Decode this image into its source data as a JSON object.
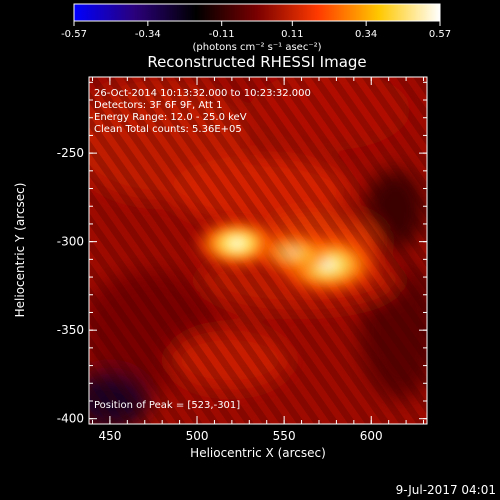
{
  "colorbar": {
    "ticks": [
      "-0.57",
      "-0.34",
      "-0.11",
      "0.11",
      "0.34",
      "0.57"
    ],
    "unit_label": "(photons cm⁻² s⁻¹ asec⁻²)",
    "range": [
      -0.57,
      0.57
    ],
    "colormap": [
      "#0000ff",
      "#2a007a",
      "#000000",
      "#7a0000",
      "#ff3a00",
      "#ffc800",
      "#ffffff"
    ]
  },
  "image": {
    "title": "Reconstructed RHESSI Image",
    "info_lines": [
      "26-Oct-2014 10:13:32.000 to 10:23:32.000",
      "Detectors: 3F 6F 9F, Att 1",
      "Energy Range: 12.0 - 25.0 keV",
      "Clean    Total counts: 5.36E+05"
    ],
    "peak_text": "Position of Peak = [523,-301]",
    "xlabel": "Heliocentric X (arcsec)",
    "ylabel": "Heliocentric Y (arcsec)",
    "xticks": [
      "450",
      "500",
      "550",
      "600"
    ],
    "yticks": [
      "-250",
      "-300",
      "-350",
      "-400"
    ],
    "xrange": [
      438,
      632
    ],
    "yrange": [
      -403,
      -207
    ],
    "sources": [
      {
        "x": 523,
        "y": -301,
        "peak": 1.0,
        "sigma": 9
      },
      {
        "x": 575,
        "y": -313,
        "peak": 0.95,
        "sigma": 11
      },
      {
        "x": 555,
        "y": -306,
        "peak": 0.6,
        "sigma": 8
      }
    ]
  },
  "footer": {
    "date": "9-Jul-2017 04:01"
  }
}
